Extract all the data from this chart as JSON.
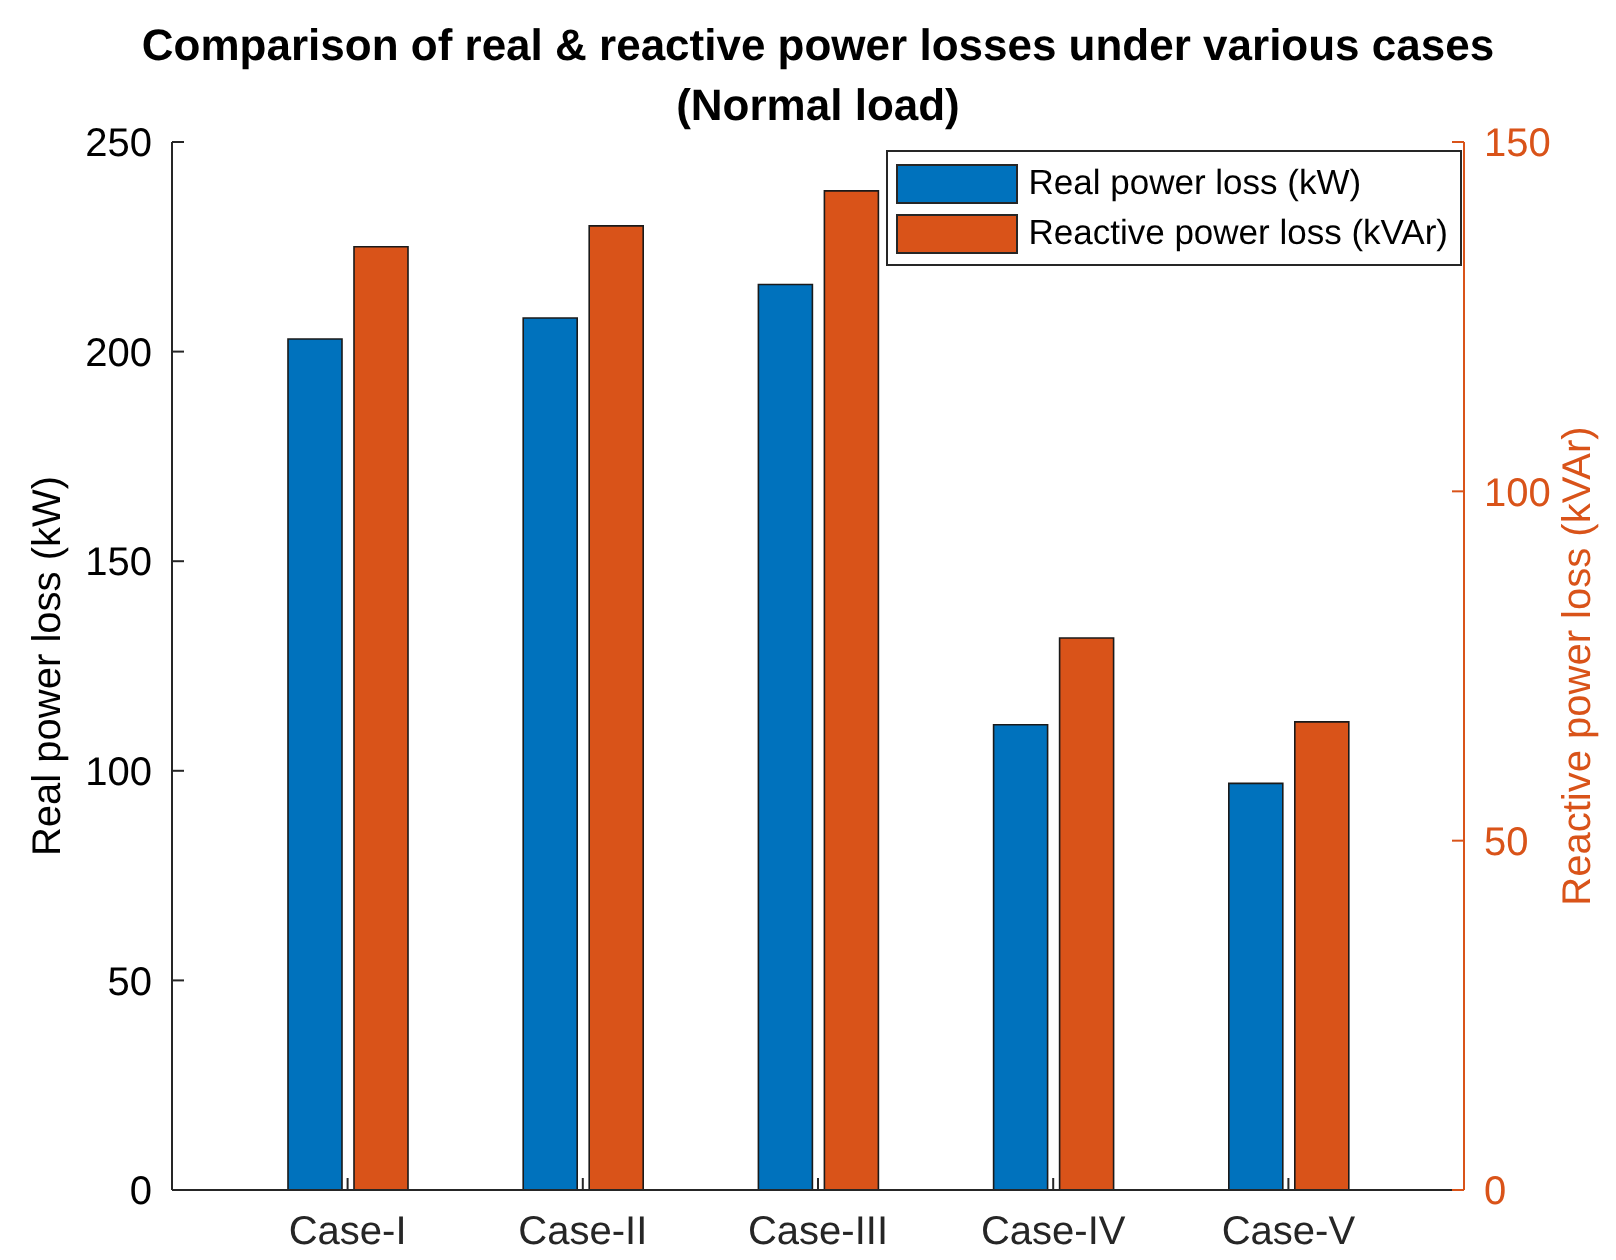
{
  "chart_data": {
    "type": "bar",
    "title": "Comparison of real & reactive power losses under various cases",
    "subtitle": "(Normal load)",
    "ylabel": "Real power loss (kW)",
    "y2label": "Reactive power loss (kVAr)",
    "categories": [
      "Case-I",
      "Case-II",
      "Case-III",
      "Case-IV",
      "Case-V"
    ],
    "series": [
      {
        "name": "Real power loss (kW)",
        "color": "#0072bd",
        "values": [
          203,
          208,
          216,
          111,
          97
        ]
      },
      {
        "name": "Reactive power loss (kVAr)",
        "color": "#d95319",
        "axis": "y2",
        "values": [
          135,
          138,
          143,
          79,
          67
        ]
      }
    ],
    "ylim": [
      0,
      250
    ],
    "yticks": [
      0,
      50,
      100,
      150,
      200,
      250
    ],
    "y2lim": [
      0,
      150
    ],
    "y2ticks": [
      0,
      50,
      100,
      150
    ],
    "legend": "top right"
  }
}
